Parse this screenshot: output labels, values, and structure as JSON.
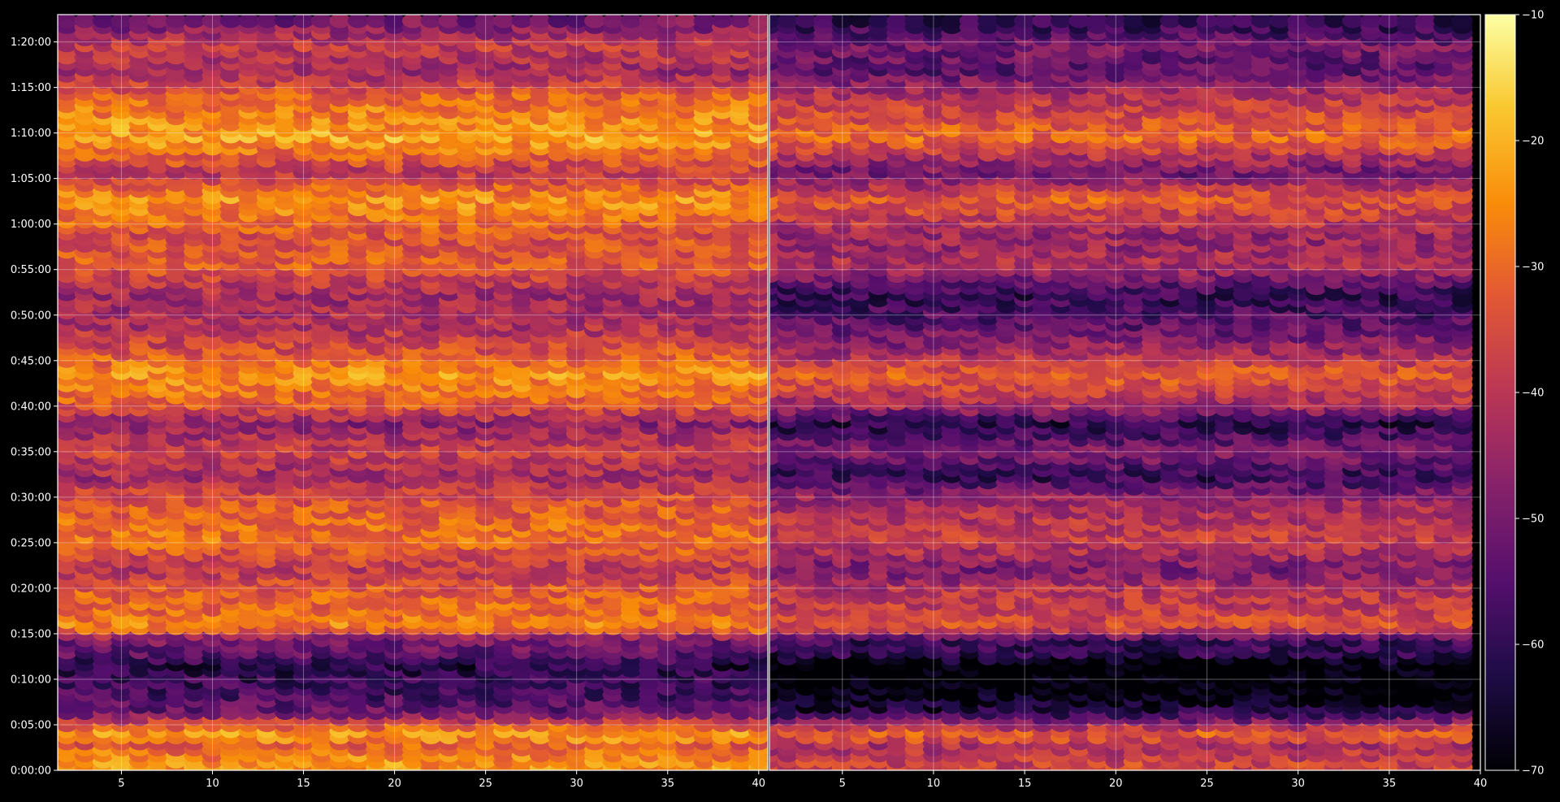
{
  "chart_data": {
    "type": "heatmap",
    "title": "",
    "xlabel": "",
    "ylabel": "",
    "grid": true,
    "colormap": "inferno",
    "colorbar": {
      "position": "right",
      "range": [
        -70,
        -10
      ],
      "ticks": [
        -70,
        -60,
        -50,
        -40,
        -30,
        -20,
        -10
      ],
      "tick_labels": [
        "−70",
        "−60",
        "−50",
        "−40",
        "−30",
        "−20",
        "−10"
      ]
    },
    "panels": [
      {
        "name": "left",
        "x_range": [
          1.5,
          40.5
        ],
        "x_ticks": [
          5,
          10,
          15,
          20,
          25,
          30,
          35,
          40
        ],
        "x_tick_labels": [
          "5",
          "10",
          "15",
          "20",
          "25",
          "30",
          "35",
          "40"
        ],
        "columns": [
          2,
          40
        ]
      },
      {
        "name": "right",
        "x_range": [
          1,
          40
        ],
        "x_ticks": [
          5,
          10,
          15,
          20,
          25,
          30,
          35,
          40
        ],
        "x_tick_labels": [
          "5",
          "10",
          "15",
          "20",
          "25",
          "30",
          "35",
          "40"
        ],
        "columns": [
          1,
          39
        ]
      }
    ],
    "y_range_seconds": [
      0,
      4980
    ],
    "y_ticks_seconds": [
      0,
      300,
      600,
      900,
      1200,
      1500,
      1800,
      2100,
      2400,
      2700,
      3000,
      3300,
      3600,
      3900,
      4200,
      4500,
      4800
    ],
    "y_tick_labels": [
      "0:00:00",
      "0:05:00",
      "0:10:00",
      "0:15:00",
      "0:20:00",
      "0:25:00",
      "0:30:00",
      "0:35:00",
      "0:40:00",
      "0:45:00",
      "0:50:00",
      "0:55:00",
      "1:00:00",
      "1:05:00",
      "1:10:00",
      "1:15:00",
      "1:20:00"
    ],
    "row_profile_dB": [
      {
        "t": 60,
        "left": -22,
        "right": -35
      },
      {
        "t": 180,
        "left": -30,
        "right": -40
      },
      {
        "t": 250,
        "left": -20,
        "right": -28
      },
      {
        "t": 330,
        "left": -35,
        "right": -45
      },
      {
        "t": 400,
        "left": -50,
        "right": -60
      },
      {
        "t": 550,
        "left": -56,
        "right": -70
      },
      {
        "t": 700,
        "left": -60,
        "right": -70
      },
      {
        "t": 790,
        "left": -50,
        "right": -58
      },
      {
        "t": 880,
        "left": -48,
        "right": -56
      },
      {
        "t": 960,
        "left": -24,
        "right": -32
      },
      {
        "t": 1060,
        "left": -28,
        "right": -36
      },
      {
        "t": 1200,
        "left": -30,
        "right": -38
      },
      {
        "t": 1340,
        "left": -38,
        "right": -48
      },
      {
        "t": 1530,
        "left": -27,
        "right": -36
      },
      {
        "t": 1630,
        "left": -28,
        "right": -38
      },
      {
        "t": 1800,
        "left": -32,
        "right": -42
      },
      {
        "t": 1950,
        "left": -42,
        "right": -58
      },
      {
        "t": 2110,
        "left": -35,
        "right": -46
      },
      {
        "t": 2300,
        "left": -45,
        "right": -60
      },
      {
        "t": 2410,
        "left": -32,
        "right": -42
      },
      {
        "t": 2620,
        "left": -22,
        "right": -30
      },
      {
        "t": 2800,
        "left": -34,
        "right": -44
      },
      {
        "t": 2950,
        "left": -40,
        "right": -52
      },
      {
        "t": 3150,
        "left": -42,
        "right": -58
      },
      {
        "t": 3350,
        "left": -30,
        "right": -40
      },
      {
        "t": 3520,
        "left": -33,
        "right": -44
      },
      {
        "t": 3780,
        "left": -22,
        "right": -30
      },
      {
        "t": 3950,
        "left": -38,
        "right": -50
      },
      {
        "t": 4180,
        "left": -20,
        "right": -28
      },
      {
        "t": 4450,
        "left": -28,
        "right": -38
      },
      {
        "t": 4620,
        "left": -42,
        "right": -52
      },
      {
        "t": 4790,
        "left": -36,
        "right": -48
      },
      {
        "t": 4930,
        "left": -48,
        "right": -58
      }
    ]
  }
}
